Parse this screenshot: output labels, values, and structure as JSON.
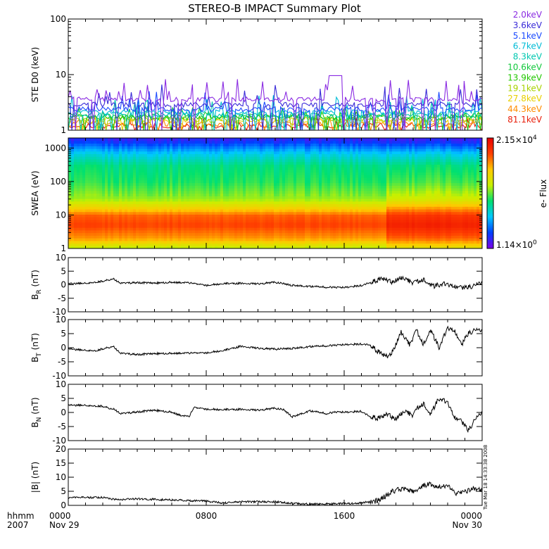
{
  "title": "STEREO-B IMPACT Summary Plot",
  "time_axis": {
    "corner_labels": [
      "hhmm",
      "2007"
    ],
    "ticks": [
      {
        "hhmm": "0000",
        "date": "Nov 29"
      },
      {
        "hhmm": "0800",
        "date": ""
      },
      {
        "hhmm": "1600",
        "date": ""
      },
      {
        "hhmm": "0000",
        "date": "Nov 30"
      }
    ]
  },
  "timestamp": "Tue Mar 18 14:33:38 2008",
  "chart_data": [
    {
      "id": "ste",
      "type": "line",
      "ylabel": "STE D0 (keV)",
      "yscale": "log",
      "ylim": [
        1,
        100
      ],
      "yticks": [
        1,
        10,
        100
      ],
      "ytick_labels": [
        "1",
        "10",
        "100"
      ],
      "series": [
        {
          "name": "2.0keV",
          "color": "#8a2be2",
          "typical": 3.6,
          "max": 9.6
        },
        {
          "name": "3.6keV",
          "color": "#3a2bd8",
          "typical": 2.9,
          "max": 8.0
        },
        {
          "name": "5.1keV",
          "color": "#1a4aff",
          "typical": 2.4,
          "max": 6.0
        },
        {
          "name": "6.7keV",
          "color": "#00bcd6",
          "typical": 2.1,
          "max": 5.0
        },
        {
          "name": "8.3keV",
          "color": "#00c8b0",
          "typical": 1.9,
          "max": 4.0
        },
        {
          "name": "10.6keV",
          "color": "#10c83a",
          "typical": 1.8,
          "max": 3.0
        },
        {
          "name": "13.9keV",
          "color": "#22c800",
          "typical": 1.7,
          "max": 2.4
        },
        {
          "name": "19.1keV",
          "color": "#a8d200",
          "typical": 1.6,
          "max": 2.0
        },
        {
          "name": "27.8keV",
          "color": "#e8d000",
          "typical": 1.5,
          "max": 1.8
        },
        {
          "name": "44.3keV",
          "color": "#ff8c00",
          "typical": 1.3,
          "max": 1.8
        },
        {
          "name": "81.1keV",
          "color": "#e8200c",
          "typical": 1.2,
          "max": 1.8
        }
      ]
    },
    {
      "id": "swea",
      "type": "heatmap",
      "ylabel": "SWEA (eV)",
      "yscale": "log",
      "ylim": [
        1,
        2000
      ],
      "yticks": [
        1,
        10,
        100,
        1000
      ],
      "ytick_labels": [
        "1",
        "10",
        "100",
        "1000"
      ],
      "colorbar": {
        "label": "e- Flux",
        "max_mant": "2.15",
        "max_exp": "4",
        "min_mant": "1.14",
        "min_exp": "0",
        "stops": [
          "#7a00e8",
          "#0040ff",
          "#00c8ff",
          "#00e070",
          "#c8f000",
          "#ffc800",
          "#ff4000",
          "#e80000"
        ]
      },
      "flux_profile": {
        "energy_ev": [
          1,
          2,
          5,
          10,
          15,
          30,
          100,
          300,
          700,
          1500,
          2000
        ],
        "level_quiet": [
          0.55,
          0.76,
          0.86,
          0.82,
          0.7,
          0.54,
          0.45,
          0.41,
          0.3,
          0.13,
          0.08
        ],
        "level_disturbed": [
          0.62,
          0.82,
          0.93,
          0.88,
          0.78,
          0.6,
          0.48,
          0.42,
          0.3,
          0.12,
          0.07
        ]
      },
      "disturbed_from_hour": 18.4
    },
    {
      "id": "br",
      "type": "line",
      "ylabel": "B_R (nT)",
      "label_main": "B",
      "label_sub": "R",
      "label_unit": "(nT)",
      "ylim": [
        -10,
        10
      ],
      "yticks": [
        -10,
        -5,
        0,
        5,
        10
      ],
      "ytick_labels": [
        "-10",
        "-5",
        "0",
        "5",
        "10"
      ],
      "x_hours": [
        0,
        1,
        2,
        2.6,
        3,
        4,
        5,
        6,
        7,
        8,
        9,
        10,
        11,
        12,
        13,
        14,
        15,
        16,
        17,
        17.6,
        18.2,
        18.8,
        19.4,
        20,
        20.6,
        21.2,
        21.8,
        22.4,
        23,
        23.5,
        24
      ],
      "values": [
        0.3,
        0.6,
        1.3,
        2.2,
        0.5,
        0.8,
        0.6,
        0.9,
        0.7,
        -0.2,
        0.4,
        0.5,
        0.3,
        0.9,
        -0.2,
        -0.6,
        -0.9,
        -1.0,
        -0.3,
        1.0,
        2.4,
        1.0,
        2.6,
        0.5,
        1.8,
        -0.5,
        0.3,
        -0.4,
        -1.2,
        -0.6,
        1.3
      ]
    },
    {
      "id": "bt",
      "type": "line",
      "ylabel": "B_T (nT)",
      "label_main": "B",
      "label_sub": "T",
      "label_unit": "(nT)",
      "ylim": [
        -10,
        10
      ],
      "yticks": [
        -10,
        -5,
        0,
        5,
        10
      ],
      "ytick_labels": [
        "-10",
        "-5",
        "0",
        "5",
        "10"
      ],
      "x_hours": [
        0,
        0.8,
        1.6,
        2.6,
        3,
        4,
        5,
        6,
        7,
        8,
        9,
        10,
        11,
        12,
        13,
        14,
        15,
        16,
        17,
        17.5,
        18,
        18.3,
        18.6,
        19,
        19.3,
        19.8,
        20.2,
        20.6,
        21,
        21.5,
        22,
        22.4,
        22.8,
        23.2,
        23.6,
        24
      ],
      "values": [
        -0.5,
        -0.8,
        -1.0,
        0.5,
        -2.0,
        -2.4,
        -2.1,
        -2.0,
        -1.9,
        -1.8,
        -1.0,
        0.5,
        -0.2,
        -0.5,
        -0.2,
        0.4,
        0.7,
        1.1,
        1.3,
        1.0,
        -1.5,
        -2.5,
        -3.2,
        1.0,
        5.5,
        1.0,
        6.0,
        1.0,
        6.5,
        0.0,
        7.0,
        6.3,
        1.0,
        5.0,
        6.2,
        6.5
      ]
    },
    {
      "id": "bn",
      "type": "line",
      "ylabel": "B_N (nT)",
      "label_main": "B",
      "label_sub": "N",
      "label_unit": "(nT)",
      "ylim": [
        -10,
        10
      ],
      "yticks": [
        -10,
        -5,
        0,
        5,
        10
      ],
      "ytick_labels": [
        "-10",
        "-5",
        "0",
        "5",
        "10"
      ],
      "x_hours": [
        0,
        1,
        2,
        2.7,
        3,
        4,
        5,
        6,
        6.5,
        7,
        7.3,
        8,
        9,
        10,
        11,
        12,
        12.5,
        13,
        14,
        15,
        15.5,
        16,
        17,
        17.5,
        18,
        18.5,
        19,
        19.5,
        20,
        20.3,
        20.6,
        21,
        21.5,
        22,
        22.4,
        22.8,
        23.2,
        23.6,
        24
      ],
      "values": [
        2.5,
        2.6,
        2.2,
        1.0,
        -0.5,
        0.2,
        0.8,
        0.1,
        -1.0,
        -1.5,
        1.8,
        1.2,
        1.0,
        1.1,
        0.8,
        1.5,
        0.9,
        -1.5,
        0.6,
        -0.4,
        0.2,
        0.1,
        0.4,
        -1.5,
        -2.0,
        -0.5,
        -2.4,
        0.5,
        -1.2,
        1.8,
        3.0,
        -0.5,
        5.0,
        3.5,
        -1.5,
        -3.0,
        -6.5,
        -2.5,
        0.5
      ]
    },
    {
      "id": "bmag",
      "type": "line",
      "ylabel": "|B| (nT)",
      "label_main": "|B|",
      "label_sub": "",
      "label_unit": "(nT)",
      "ylim": [
        0,
        20
      ],
      "yticks": [
        0,
        5,
        10,
        15,
        20
      ],
      "ytick_labels": [
        "0",
        "5",
        "10",
        "15",
        "20"
      ],
      "x_hours": [
        0,
        2,
        2.8,
        4,
        6,
        8,
        9,
        10,
        12,
        13,
        14,
        15,
        16,
        17,
        17.8,
        18.4,
        18.8,
        19.5,
        20,
        20.5,
        21,
        21.5,
        22,
        22.5,
        23,
        23.5,
        24
      ],
      "values": [
        2.8,
        2.8,
        2.0,
        2.3,
        1.9,
        1.5,
        0.8,
        1.3,
        1.3,
        0.7,
        0.4,
        0.5,
        0.6,
        0.9,
        1.5,
        3.2,
        5.0,
        6.1,
        4.8,
        6.8,
        7.5,
        6.5,
        7.2,
        4.0,
        5.0,
        5.8,
        5.5
      ]
    }
  ]
}
